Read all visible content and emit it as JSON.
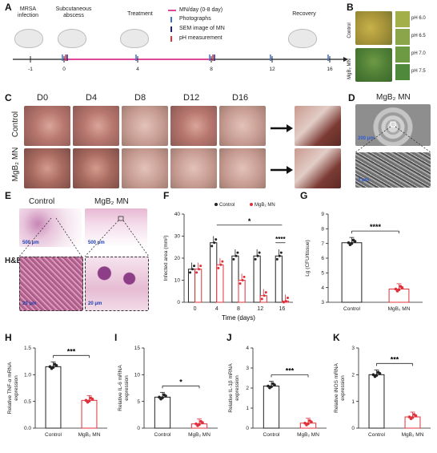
{
  "panel_labels": [
    "A",
    "B",
    "C",
    "D",
    "E",
    "F",
    "G",
    "H",
    "I",
    "J",
    "K"
  ],
  "panelA": {
    "stages": [
      "MRSA infection",
      "Subcutaneous abscess",
      "Treatment",
      "Recovery"
    ],
    "legend": [
      "MN/day (0-8 day)",
      "Photographs",
      "SEM image of MN",
      "pH measurement"
    ],
    "legend_colors": [
      "#e0499a",
      "#3a6fd0",
      "#1f1f8f",
      "#e0303a"
    ],
    "ticks": [
      "-1",
      "0",
      "4",
      "8",
      "12",
      "16"
    ]
  },
  "panelB": {
    "row_labels": [
      "Control",
      "MgB₂ MN"
    ],
    "ph_labels": [
      "pH 6.0",
      "pH 6.5",
      "pH 7.0",
      "pH 7.5"
    ],
    "ph_colors": [
      "#a3b04a",
      "#8aa54a",
      "#6e9a44",
      "#4f8a3c"
    ]
  },
  "panelC": {
    "days": [
      "D0",
      "D4",
      "D8",
      "D12",
      "D16"
    ],
    "rows": [
      "Control",
      "MgB₂ MN"
    ]
  },
  "panelD": {
    "title": "MgB₂ MN",
    "scale_top": "200 μm",
    "scale_bottom": "2 μm"
  },
  "panelE": {
    "row_label": "H&E",
    "col_labels": [
      "Control",
      "MgB₂ MN"
    ],
    "scale_large": "500 μm",
    "scale_small": "20 μm"
  },
  "chart_data": [
    {
      "panel": "F",
      "type": "bar",
      "xlabel": "Time (days)",
      "ylabel": "Infected area (mm²)",
      "categories": [
        "0",
        "4",
        "8",
        "12",
        "16"
      ],
      "ylim": [
        0,
        40
      ],
      "yticks": [
        0,
        10,
        20,
        30,
        40
      ],
      "series": [
        {
          "name": "Control",
          "color": "#222222",
          "values": [
            15,
            27,
            21,
            21,
            21
          ]
        },
        {
          "name": "MgB₂ MN",
          "color": "#e0303a",
          "values": [
            15,
            17,
            10,
            3,
            0.5
          ]
        }
      ],
      "annotations": [
        "*",
        "****"
      ]
    },
    {
      "panel": "G",
      "type": "bar",
      "ylabel": "Lg (CFU/tissue)",
      "categories": [
        "Control",
        "MgB₂ MN"
      ],
      "values": [
        7.05,
        3.9
      ],
      "ylim": [
        3,
        9
      ],
      "yticks": [
        3,
        4,
        5,
        6,
        7,
        8,
        9
      ],
      "annotations": [
        "****"
      ]
    },
    {
      "panel": "H",
      "type": "bar",
      "ylabel": "Relative TNF-α mRNA expression",
      "categories": [
        "Control",
        "MgB₂ MN"
      ],
      "values": [
        1.15,
        0.52
      ],
      "ylim": [
        0,
        1.5
      ],
      "yticks": [
        "0.0",
        "0.5",
        "1.0",
        "1.5"
      ],
      "annotations": [
        "***"
      ]
    },
    {
      "panel": "I",
      "type": "bar",
      "ylabel": "Relative IL-6 mRNA expression",
      "categories": [
        "Control",
        "MgB₂ MN"
      ],
      "values": [
        5.8,
        0.8
      ],
      "ylim": [
        0,
        15
      ],
      "yticks": [
        0,
        5,
        10,
        15
      ],
      "annotations": [
        "*"
      ]
    },
    {
      "panel": "J",
      "type": "bar",
      "ylabel": "Relative IL-1β mRNA expression",
      "categories": [
        "Control",
        "MgB₂ MN"
      ],
      "values": [
        2.1,
        0.25
      ],
      "ylim": [
        0,
        4
      ],
      "yticks": [
        0,
        1,
        2,
        3,
        4
      ],
      "annotations": [
        "***"
      ]
    },
    {
      "panel": "K",
      "type": "bar",
      "ylabel": "Relative iNOS mRNA expression",
      "categories": [
        "Control",
        "MgB₂ MN"
      ],
      "values": [
        2.0,
        0.42
      ],
      "ylim": [
        0,
        3
      ],
      "yticks": [
        0,
        1,
        2,
        3
      ],
      "annotations": [
        "***"
      ]
    }
  ]
}
